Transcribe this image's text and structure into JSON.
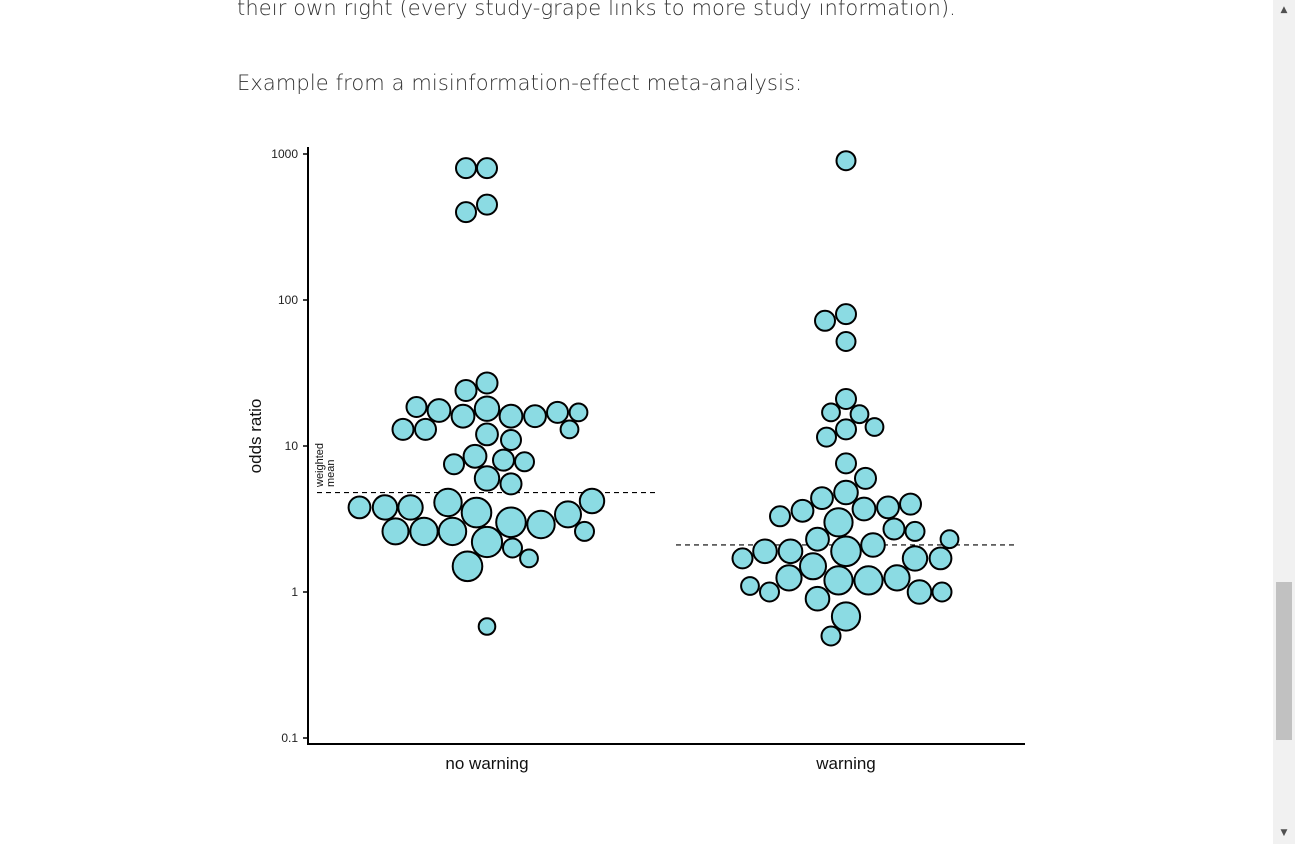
{
  "article": {
    "paragraph_top": "their own right (every study-grape links to more study information).",
    "paragraph_example": "Example from a misinformation-effect meta-analysis:"
  },
  "scrollbar": {
    "up_arrow": "▲",
    "down_arrow": "▼"
  },
  "chart_data": {
    "type": "scatter",
    "subtype": "bubble beeswarm (grape plot)",
    "title": "",
    "xlabel": "",
    "ylabel": "odds ratio",
    "yscale": "log",
    "ylim": [
      0.1,
      1000
    ],
    "y_ticks": [
      "0.1",
      "1",
      "10",
      "100",
      "1000"
    ],
    "categories": [
      "no warning",
      "warning"
    ],
    "annotation": [
      "weighted",
      "mean"
    ],
    "colors": {
      "fill": "#8bdbe3",
      "stroke": "#000000"
    },
    "series": [
      {
        "category": "no warning",
        "weighted_mean": 4.8,
        "points": [
          {
            "or": 800,
            "w": 1
          },
          {
            "or": 800,
            "w": 1
          },
          {
            "or": 450,
            "w": 1
          },
          {
            "or": 400,
            "w": 1
          },
          {
            "or": 27,
            "w": 1.1
          },
          {
            "or": 24,
            "w": 1.1
          },
          {
            "or": 17,
            "w": 0.8
          },
          {
            "or": 16,
            "w": 1.2
          },
          {
            "or": 16,
            "w": 1.3
          },
          {
            "or": 16,
            "w": 1.3
          },
          {
            "or": 18,
            "w": 1.5
          },
          {
            "or": 17.5,
            "w": 1.3
          },
          {
            "or": 18.5,
            "w": 1
          },
          {
            "or": 17,
            "w": 1.1
          },
          {
            "or": 13,
            "w": 0.8
          },
          {
            "or": 13,
            "w": 1.1
          },
          {
            "or": 13,
            "w": 1.1
          },
          {
            "or": 11,
            "w": 1
          },
          {
            "or": 12,
            "w": 1.2
          },
          {
            "or": 8.5,
            "w": 1.3
          },
          {
            "or": 8,
            "w": 1.1
          },
          {
            "or": 7.5,
            "w": 1
          },
          {
            "or": 7.8,
            "w": 0.9
          },
          {
            "or": 6,
            "w": 1.5
          },
          {
            "or": 5.5,
            "w": 1.1
          },
          {
            "or": 3.8,
            "w": 1.2
          },
          {
            "or": 3.8,
            "w": 1.5
          },
          {
            "or": 4.1,
            "w": 1.9
          },
          {
            "or": 3.4,
            "w": 1.7
          },
          {
            "or": 3.5,
            "w": 2.2
          },
          {
            "or": 3.0,
            "w": 2.2
          },
          {
            "or": 2.9,
            "w": 1.9
          },
          {
            "or": 3.8,
            "w": 1.5
          },
          {
            "or": 4.2,
            "w": 1.5
          },
          {
            "or": 2.6,
            "w": 1.7
          },
          {
            "or": 2.6,
            "w": 1.9
          },
          {
            "or": 2.6,
            "w": 1.9
          },
          {
            "or": 2.6,
            "w": 0.9
          },
          {
            "or": 2.2,
            "w": 2.3
          },
          {
            "or": 2.0,
            "w": 0.9
          },
          {
            "or": 1.7,
            "w": 0.8
          },
          {
            "or": 1.5,
            "w": 2.2
          },
          {
            "or": 0.58,
            "w": 0.7
          }
        ]
      },
      {
        "category": "warning",
        "weighted_mean": 2.1,
        "points": [
          {
            "or": 900,
            "w": 0.9
          },
          {
            "or": 80,
            "w": 1
          },
          {
            "or": 72,
            "w": 1
          },
          {
            "or": 52,
            "w": 0.9
          },
          {
            "or": 21,
            "w": 1
          },
          {
            "or": 17,
            "w": 0.8
          },
          {
            "or": 16.5,
            "w": 0.8
          },
          {
            "or": 13.5,
            "w": 0.8
          },
          {
            "or": 13,
            "w": 1
          },
          {
            "or": 11.5,
            "w": 0.9
          },
          {
            "or": 7.6,
            "w": 1
          },
          {
            "or": 6,
            "w": 1.1
          },
          {
            "or": 4.8,
            "w": 1.4
          },
          {
            "or": 4.4,
            "w": 1.2
          },
          {
            "or": 4.0,
            "w": 1.1
          },
          {
            "or": 3.8,
            "w": 1.2
          },
          {
            "or": 3.6,
            "w": 1.2
          },
          {
            "or": 3.7,
            "w": 1.3
          },
          {
            "or": 3.3,
            "w": 1
          },
          {
            "or": 3.0,
            "w": 2
          },
          {
            "or": 2.7,
            "w": 1.1
          },
          {
            "or": 2.6,
            "w": 0.9
          },
          {
            "or": 2.3,
            "w": 1.3
          },
          {
            "or": 2.1,
            "w": 1.4
          },
          {
            "or": 1.9,
            "w": 1.4
          },
          {
            "or": 1.9,
            "w": 1.4
          },
          {
            "or": 1.9,
            "w": 2.2
          },
          {
            "or": 1.7,
            "w": 1.5
          },
          {
            "or": 1.7,
            "w": 1.2
          },
          {
            "or": 1.7,
            "w": 1
          },
          {
            "or": 2.3,
            "w": 0.8
          },
          {
            "or": 1.5,
            "w": 1.7
          },
          {
            "or": 1.25,
            "w": 1.6
          },
          {
            "or": 1.2,
            "w": 2
          },
          {
            "or": 1.2,
            "w": 2
          },
          {
            "or": 1.25,
            "w": 1.6
          },
          {
            "or": 1.0,
            "w": 1.4
          },
          {
            "or": 1.1,
            "w": 0.8
          },
          {
            "or": 1.0,
            "w": 0.9
          },
          {
            "or": 1.0,
            "w": 0.9
          },
          {
            "or": 0.9,
            "w": 1.4
          },
          {
            "or": 0.68,
            "w": 2
          },
          {
            "or": 0.5,
            "w": 0.9
          }
        ]
      }
    ]
  }
}
